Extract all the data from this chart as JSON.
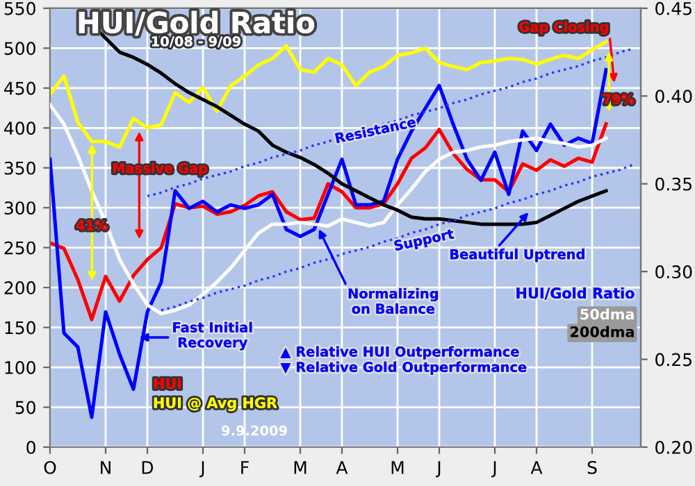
{
  "chart_data": {
    "type": "line",
    "title": "HUI/Gold Ratio",
    "subtitle": "10/08 - 9/09",
    "categories": [
      "O",
      null,
      null,
      null,
      "N",
      null,
      null,
      "D",
      null,
      null,
      null,
      "J",
      null,
      null,
      "F",
      null,
      null,
      null,
      "M",
      null,
      null,
      "A",
      null,
      null,
      null,
      "M",
      null,
      null,
      "J",
      null,
      null,
      null,
      "J",
      null,
      null,
      "A",
      null,
      null,
      null,
      "S",
      null,
      null,
      null
    ],
    "series": [
      {
        "name": "HUI",
        "color": "#ff0000",
        "axis": "y",
        "values": [
          256,
          249,
          210,
          160,
          214,
          183,
          215,
          235,
          250,
          305,
          300,
          302,
          292,
          295,
          303,
          315,
          320,
          295,
          285,
          287,
          330,
          320,
          300,
          300,
          305,
          330,
          362,
          375,
          398,
          368,
          348,
          335,
          335,
          320,
          355,
          347,
          360,
          352,
          362,
          357,
          405,
          null,
          null
        ]
      },
      {
        "name": "HUI @ Avg HGR",
        "color": "#ffff00",
        "axis": "y",
        "values": [
          442,
          465,
          407,
          383,
          383,
          376,
          412,
          400,
          404,
          444,
          432,
          451,
          421,
          453,
          465,
          479,
          487,
          503,
          473,
          470,
          487,
          479,
          453,
          470,
          477,
          491,
          494,
          500,
          482,
          477,
          473,
          482,
          484,
          487,
          486,
          480,
          486,
          491,
          487,
          498,
          508,
          null,
          null
        ]
      },
      {
        "name": "HUI/Gold Ratio",
        "color": "#0000ff",
        "axis": "y2",
        "values": [
          0.364,
          0.265,
          0.257,
          0.217,
          0.277,
          0.253,
          0.233,
          0.277,
          0.294,
          0.346,
          0.336,
          0.34,
          0.334,
          0.338,
          0.336,
          0.338,
          0.344,
          0.324,
          0.32,
          0.324,
          0.344,
          0.364,
          0.338,
          0.338,
          0.34,
          0.364,
          0.38,
          0.393,
          0.406,
          0.384,
          0.364,
          0.352,
          0.368,
          0.344,
          0.38,
          0.369,
          0.384,
          0.372,
          0.376,
          0.373,
          0.415,
          null,
          null
        ]
      },
      {
        "name": "50dma",
        "color": "#ffffff",
        "axis": "y2",
        "values": [
          0.395,
          0.384,
          0.366,
          0.346,
          0.328,
          0.307,
          0.293,
          0.281,
          0.276,
          0.278,
          0.281,
          0.287,
          0.294,
          0.302,
          0.312,
          0.322,
          0.327,
          0.327,
          0.328,
          0.327,
          0.326,
          0.33,
          0.328,
          0.326,
          0.328,
          0.338,
          0.347,
          0.357,
          0.364,
          0.368,
          0.369,
          0.371,
          0.372,
          0.374,
          0.375,
          0.376,
          0.374,
          0.373,
          0.371,
          0.372,
          0.376,
          null,
          null
        ]
      },
      {
        "name": "200dma",
        "color": "#000000",
        "axis": "y2",
        "values": [
          null,
          null,
          null,
          0.441,
          0.433,
          0.425,
          0.422,
          0.418,
          0.413,
          0.407,
          0.402,
          0.398,
          0.394,
          0.389,
          0.384,
          0.38,
          0.372,
          0.368,
          0.365,
          0.361,
          0.356,
          0.35,
          0.346,
          0.342,
          0.338,
          0.335,
          0.331,
          0.33,
          0.33,
          0.329,
          0.328,
          0.327,
          0.327,
          0.327,
          0.327,
          0.328,
          0.332,
          0.336,
          0.34,
          0.343,
          0.346,
          null,
          null
        ]
      },
      {
        "color": "#3333ff",
        "axis": "y2",
        "line_style": "dotted",
        "values": [
          null,
          null,
          null,
          null,
          null,
          null,
          null,
          0.343,
          0.345,
          0.348,
          0.35,
          0.353,
          0.355,
          0.357,
          0.36,
          0.362,
          0.365,
          0.367,
          0.369,
          0.372,
          0.374,
          0.377,
          0.379,
          0.381,
          0.384,
          0.386,
          0.389,
          0.391,
          0.393,
          0.396,
          0.398,
          0.401,
          0.403,
          0.405,
          0.408,
          0.41,
          0.413,
          0.415,
          0.417,
          0.42,
          0.422,
          0.425,
          0.427
        ]
      },
      {
        "color": "#3333ff",
        "axis": "y2",
        "line_style": "dotted",
        "values": [
          null,
          null,
          null,
          null,
          null,
          null,
          null,
          null,
          0.278,
          0.28,
          0.283,
          0.285,
          0.288,
          0.29,
          0.292,
          0.295,
          0.297,
          0.3,
          0.302,
          0.305,
          0.307,
          0.31,
          0.312,
          0.314,
          0.317,
          0.319,
          0.322,
          0.324,
          0.327,
          0.329,
          0.332,
          0.334,
          0.336,
          0.339,
          0.341,
          0.344,
          0.346,
          0.349,
          0.351,
          0.354,
          0.356,
          0.358,
          0.361
        ]
      }
    ],
    "ylim": [
      0,
      550
    ],
    "yticks": [
      0,
      50,
      100,
      150,
      200,
      250,
      300,
      350,
      400,
      450,
      500,
      550
    ],
    "y2lim": [
      0.2,
      0.45
    ],
    "y2ticks": [
      {
        "value": 0.2,
        "label": "0.20"
      },
      0.25,
      {
        "value": 0.3,
        "label": "0.30"
      },
      0.35,
      {
        "value": 0.4,
        "label": "0.40"
      },
      0.45
    ],
    "grid": true,
    "annotations": [
      "Massive Gap",
      "41%",
      "Fast Initial\nRecovery",
      "Normalizing\non Balance",
      "Resistance",
      "Support",
      "Beautiful Uptrend",
      "Gap Closing",
      "79%",
      "▲ Relative HUI Outperformance",
      "▼ Relative Gold Outperformance",
      "9.9.2009"
    ]
  }
}
